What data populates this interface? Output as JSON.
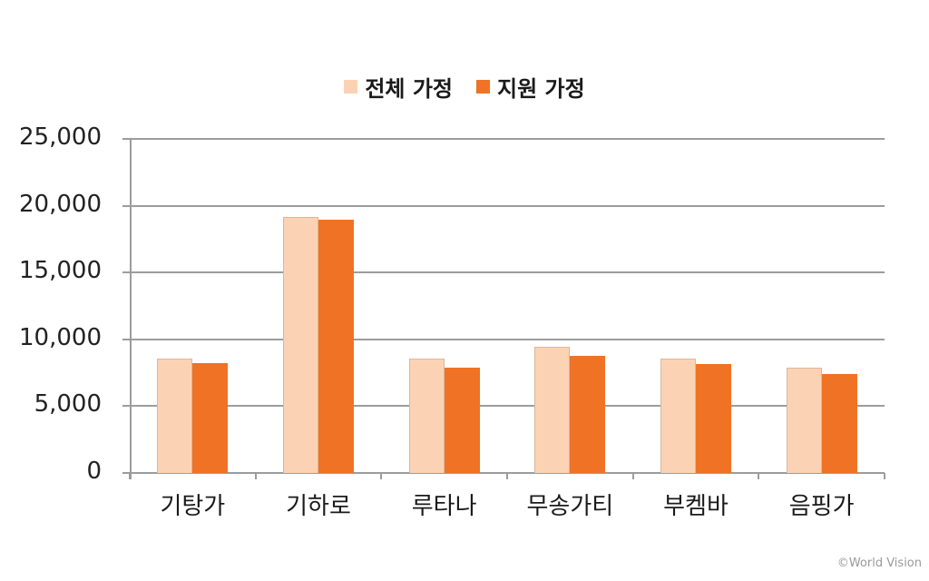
{
  "legend": [
    {
      "label": "전체 가정",
      "color": "#fbd3b4"
    },
    {
      "label": "지원 가정",
      "color": "#f07225"
    }
  ],
  "credit": "©World Vision",
  "colors": {
    "grid": "#9c9c9c",
    "series_total": "#fbd3b4",
    "series_supported": "#f07225"
  },
  "chart_data": {
    "type": "bar",
    "title": "",
    "xlabel": "",
    "ylabel": "",
    "categories": [
      "기탕가",
      "기하로",
      "루타나",
      "무송가티",
      "부켐바",
      "음핑가"
    ],
    "series": [
      {
        "name": "전체 가정",
        "values": [
          8550,
          19150,
          8550,
          9450,
          8550,
          7900
        ]
      },
      {
        "name": "지원 가정",
        "values": [
          8200,
          18950,
          7850,
          8750,
          8150,
          7400
        ]
      }
    ],
    "ylim": [
      0,
      25000
    ],
    "yticks": [
      "0",
      "5,000",
      "10,000",
      "15,000",
      "20,000",
      "25,000"
    ],
    "grid": true,
    "legend_position": "top"
  }
}
